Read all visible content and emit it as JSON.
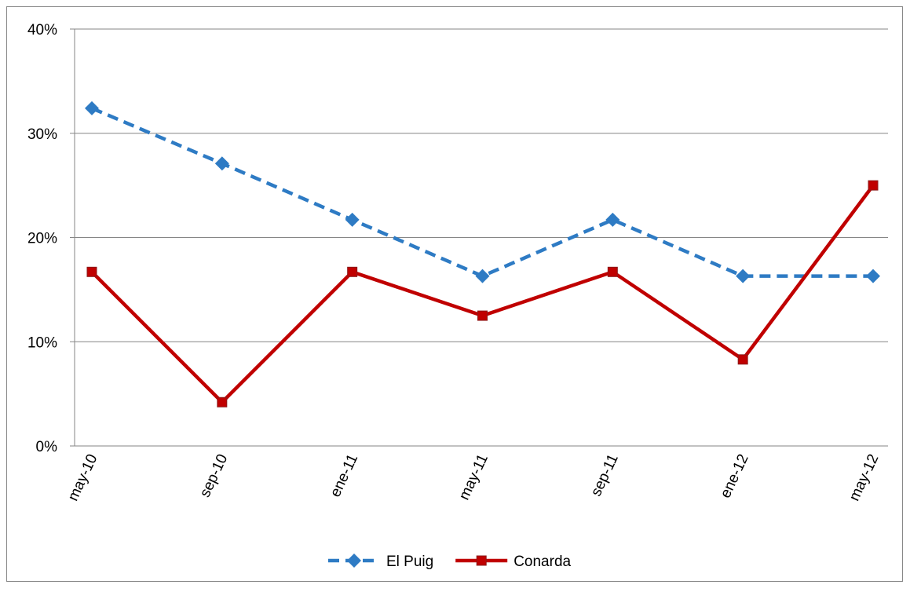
{
  "chart_data": {
    "type": "line",
    "categories": [
      "may-10",
      "sep-10",
      "ene-11",
      "may-11",
      "sep-11",
      "ene-12",
      "may-12"
    ],
    "series": [
      {
        "name": "El Puig",
        "color": "#2e7bc4",
        "dash": true,
        "marker": "diamond",
        "values": [
          32.4,
          27.1,
          21.7,
          16.3,
          21.7,
          16.3,
          16.3
        ]
      },
      {
        "name": "Conarda",
        "color": "#c00000",
        "dash": false,
        "marker": "square",
        "values": [
          16.7,
          4.2,
          16.7,
          12.5,
          16.7,
          8.3,
          25.0
        ]
      }
    ],
    "ylim": [
      0,
      40
    ],
    "yticks": [
      {
        "value": 0,
        "label": "0%"
      },
      {
        "value": 10,
        "label": "10%"
      },
      {
        "value": 20,
        "label": "20%"
      },
      {
        "value": 30,
        "label": "30%"
      },
      {
        "value": 40,
        "label": "40%"
      }
    ],
    "grid": true,
    "legend": "bottom"
  }
}
